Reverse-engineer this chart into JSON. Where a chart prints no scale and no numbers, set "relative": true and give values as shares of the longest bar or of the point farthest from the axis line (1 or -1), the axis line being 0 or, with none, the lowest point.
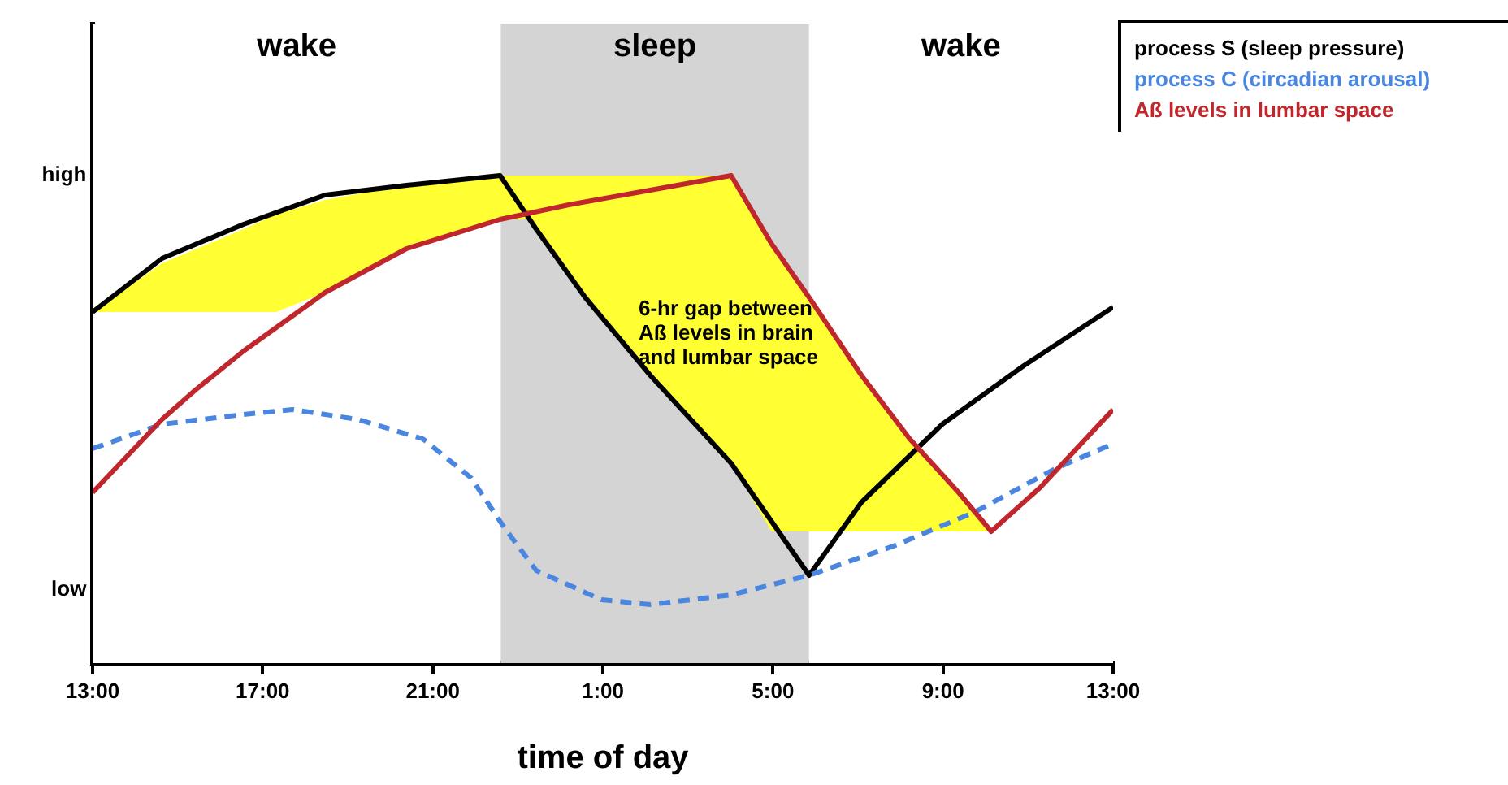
{
  "chart_data": {
    "type": "line",
    "relative": true,
    "xlabel": "time of day",
    "x": [
      "2000-01-01T13:00",
      "2000-01-01T14:38",
      "2000-01-01T16:33",
      "2000-01-01T18:28",
      "2000-01-01T20:23",
      "2000-01-01T22:35",
      "2000-01-01T23:26",
      "2000-01-02T00:35",
      "2000-01-02T02:07",
      "2000-01-02T04:01",
      "2000-01-02T05:51",
      "2000-01-02T07:05",
      "2000-01-02T08:59",
      "2000-01-02T10:54",
      "2000-01-02T13:00"
    ],
    "series": [
      {
        "type": "area",
        "color": "#ffff33",
        "x": [
          "2000-01-01T13:00",
          "2000-01-01T14:38",
          "2000-01-01T16:33",
          "2000-01-01T17:19",
          "2000-01-01T18:28",
          "2000-01-01T20:23",
          "2000-01-01T22:35",
          "2000-01-01T23:14",
          "2000-01-02T00:35",
          "2000-01-02T02:07",
          "2000-01-02T04:01",
          "2000-01-02T04:58",
          "2000-01-02T05:51",
          "2000-01-02T07:05",
          "2000-01-02T08:13",
          "2000-01-02T09:22",
          "2000-01-02T10:08"
        ],
        "values": [
          null,
          null,
          null,
          null,
          null,
          null,
          null,
          null,
          null,
          null,
          null,
          null,
          null,
          null,
          null,
          null,
          null
        ],
        "upper": [
          0.72,
          0.82,
          0.89,
          0.92,
          0.95,
          0.98,
          1,
          1,
          1,
          1,
          1,
          0.86,
          0.75,
          0.59,
          0.46,
          0.35,
          0.27
        ],
        "lower": [
          0.72,
          0.72,
          0.72,
          0.72,
          0.76,
          0.85,
          0.91,
          0.91,
          0.75,
          0.59,
          0.41,
          0.27,
          0.27,
          0.27,
          0.27,
          0.27,
          0.27
        ]
      },
      {
        "name": "process S (sleep pressure)",
        "color": "#000000",
        "values": [
          0.72,
          0.83,
          0.9,
          0.96,
          0.98,
          1,
          0.89,
          0.75,
          0.59,
          0.41,
          0.18,
          0.33,
          0.49,
          0.61,
          0.73
        ]
      },
      {
        "name": "process C (circadian arousal)",
        "color": "#4a86e0",
        "line_style": "dashed",
        "x": [
          "2000-01-01T13:00",
          "2000-01-01T14:38",
          "2000-01-01T16:33",
          "2000-01-01T17:42",
          "2000-01-01T19:14",
          "2000-01-01T20:46",
          "2000-01-01T21:54",
          "2000-01-01T22:40",
          "2000-01-01T23:26",
          "2000-01-02T00:58",
          "2000-01-02T02:07",
          "2000-01-02T04:01",
          "2000-01-02T05:51",
          "2000-01-02T07:50",
          "2000-01-02T09:45",
          "2000-01-02T11:40",
          "2000-01-02T13:00"
        ],
        "values": [
          0.44,
          0.49,
          0.51,
          0.52,
          0.5,
          0.46,
          0.38,
          0.28,
          0.19,
          0.13,
          0.12,
          0.14,
          0.18,
          0.24,
          0.31,
          0.4,
          0.45
        ]
      },
      {
        "name": "Aß levels in lumbar space",
        "color": "#c0272d",
        "x": [
          "2000-01-01T13:00",
          "2000-01-01T14:38",
          "2000-01-01T15:25",
          "2000-01-01T16:33",
          "2000-01-01T18:28",
          "2000-01-01T20:23",
          "2000-01-01T22:35",
          "2000-01-02T00:12",
          "2000-01-02T02:07",
          "2000-01-02T04:01",
          "2000-01-02T04:58",
          "2000-01-02T05:51",
          "2000-01-02T07:05",
          "2000-01-02T08:13",
          "2000-01-02T09:22",
          "2000-01-02T10:08",
          "2000-01-02T11:17",
          "2000-01-02T13:00"
        ],
        "values": [
          0.35,
          0.5,
          0.56,
          0.64,
          0.76,
          0.85,
          0.91,
          0.94,
          0.97,
          1,
          0.86,
          0.75,
          0.59,
          0.46,
          0.35,
          0.27,
          0.36,
          0.52
        ]
      }
    ],
    "xlim": [
      "2000-01-01T13:00",
      "2000-01-02T13:00"
    ],
    "xticks": [
      {
        "value": "2000-01-01T13:00",
        "label": "13:00"
      },
      {
        "value": "2000-01-01T17:00",
        "label": "17:00"
      },
      {
        "value": "2000-01-01T21:00",
        "label": "21:00"
      },
      {
        "value": "2000-01-02T01:00",
        "label": "1:00"
      },
      {
        "value": "2000-01-02T05:00",
        "label": "5:00"
      },
      {
        "value": "2000-01-02T09:00",
        "label": "9:00"
      },
      {
        "value": "2000-01-02T13:00",
        "label": "13:00"
      }
    ],
    "bands": [
      {
        "axis": "x",
        "from": "2000-01-01T13:00",
        "to": "2000-01-01T22:36",
        "label": "wake",
        "color": "#ffffff"
      },
      {
        "axis": "x",
        "from": "2000-01-01T22:36",
        "to": "2000-01-02T05:51",
        "label": "sleep",
        "color": "#d4d4d4"
      },
      {
        "axis": "x",
        "from": "2000-01-02T05:51",
        "to": "2000-01-02T13:00",
        "label": "wake",
        "color": "#ffffff"
      }
    ],
    "annotations": [
      "6-hr gap between Aß levels in brain and lumbar space",
      "high",
      "low"
    ],
    "marker": "none",
    "grid": false,
    "legend": "top right"
  }
}
